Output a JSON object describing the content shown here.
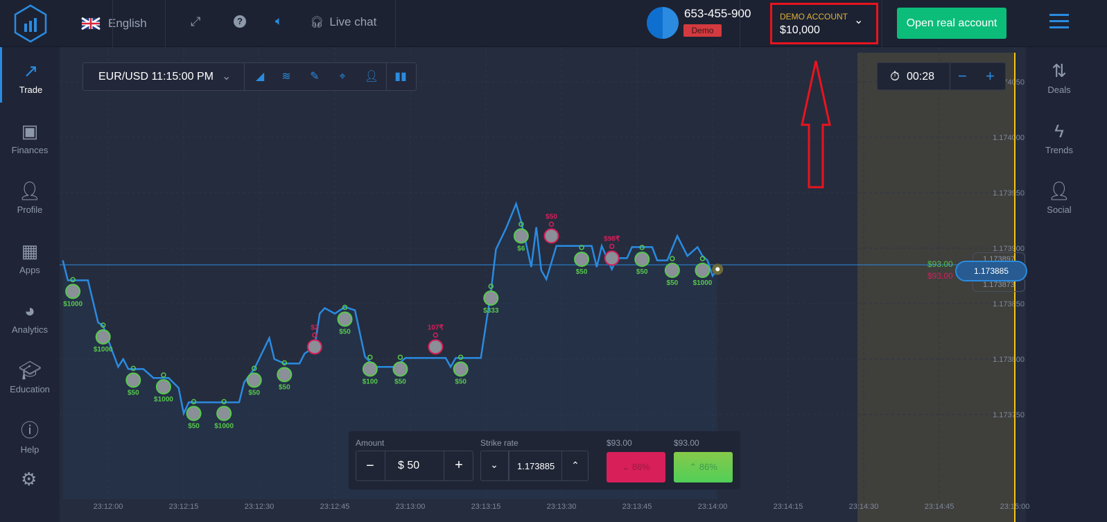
{
  "header": {
    "language": "English",
    "live_chat": "Live chat",
    "account_id": "653-455-900",
    "account_badge": "Demo",
    "account_type": "DEMO ACCOUNT",
    "balance": "$10,000",
    "open_real": "Open real account"
  },
  "sidebar": {
    "items": [
      {
        "label": "Trade",
        "icon": "trend-up-icon",
        "active": true
      },
      {
        "label": "Finances",
        "icon": "banknote-icon"
      },
      {
        "label": "Profile",
        "icon": "user-icon"
      },
      {
        "label": "Apps",
        "icon": "grid-icon"
      },
      {
        "label": "Analytics",
        "icon": "pie-chart-icon"
      },
      {
        "label": "Education",
        "icon": "graduation-cap-icon"
      },
      {
        "label": "Help",
        "icon": "info-icon"
      }
    ]
  },
  "right_sidebar": {
    "items": [
      {
        "label": "Deals",
        "icon": "up-down-arrows-icon"
      },
      {
        "label": "Trends",
        "icon": "lightning-icon"
      },
      {
        "label": "Social",
        "icon": "user-plus-icon"
      }
    ]
  },
  "toolbar": {
    "asset": "EUR/USD 11:15:00 PM"
  },
  "timer": {
    "value": "00:28"
  },
  "trade_panel": {
    "amount_label": "Amount",
    "amount": "$ 50",
    "strike_label": "Strike rate",
    "strike": "1.173885",
    "down_payout": "$93.00",
    "up_payout": "$93.00",
    "down_pct": "86%",
    "up_pct": "86%"
  },
  "price_tag": {
    "current": "1.173885",
    "upper": "1.173897",
    "lower": "1.173873",
    "profit_up": "$93.00",
    "profit_down": "$93.00"
  },
  "colors": {
    "accent": "#2a8be0",
    "green": "#58c94d",
    "red": "#d81f5a",
    "open_real": "#0cbd7a",
    "highlight": "#e8141e",
    "expiry": "#f5c518"
  },
  "chart_data": {
    "type": "line",
    "y_ticks": [
      "1.174050",
      "1.174000",
      "1.173950",
      "1.173900",
      "1.173850",
      "1.173800",
      "1.173750"
    ],
    "x_ticks": [
      "23:12:00",
      "23:12:15",
      "23:12:30",
      "23:12:45",
      "23:13:00",
      "23:13:15",
      "23:13:30",
      "23:13:45",
      "23:14:00",
      "23:14:15",
      "23:14:30",
      "23:14:45",
      "23:15:00"
    ],
    "expiry": "23:15:00",
    "current_price": 1.173885,
    "points": [
      [
        "23:11:51",
        1.173889
      ],
      [
        "23:11:52",
        1.173871
      ],
      [
        "23:11:56",
        1.173871
      ],
      [
        "23:11:58",
        1.173833
      ],
      [
        "23:11:59",
        1.17383
      ],
      [
        "23:12:01",
        1.173805
      ],
      [
        "23:12:02",
        1.173793
      ],
      [
        "23:12:03",
        1.1738
      ],
      [
        "23:12:04",
        1.173791
      ],
      [
        "23:12:07",
        1.173791
      ],
      [
        "23:12:09",
        1.173783
      ],
      [
        "23:12:12",
        1.173783
      ],
      [
        "23:12:14",
        1.173774
      ],
      [
        "23:12:15",
        1.173751
      ],
      [
        "23:12:16",
        1.173761
      ],
      [
        "23:12:26",
        1.173761
      ],
      [
        "23:12:27",
        1.173779
      ],
      [
        "23:12:29",
        1.173791
      ],
      [
        "23:12:32",
        1.173819
      ],
      [
        "23:12:33",
        1.1738
      ],
      [
        "23:12:35",
        1.173796
      ],
      [
        "23:12:38",
        1.173796
      ],
      [
        "23:12:39",
        1.173805
      ],
      [
        "23:12:41",
        1.173811
      ],
      [
        "23:12:42",
        1.173841
      ],
      [
        "23:12:43",
        1.173846
      ],
      [
        "23:12:45",
        1.173841
      ],
      [
        "23:12:47",
        1.173847
      ],
      [
        "23:12:49",
        1.173844
      ],
      [
        "23:12:51",
        1.173802
      ],
      [
        "23:12:53",
        1.173793
      ],
      [
        "23:12:57",
        1.173793
      ],
      [
        "23:12:59",
        1.173801
      ],
      [
        "23:13:07",
        1.173801
      ],
      [
        "23:13:08",
        1.173793
      ],
      [
        "23:13:09",
        1.173801
      ],
      [
        "23:13:14",
        1.173801
      ],
      [
        "23:13:15",
        1.173831
      ],
      [
        "23:13:16",
        1.173861
      ],
      [
        "23:13:17",
        1.173899
      ],
      [
        "23:13:19",
        1.173918
      ],
      [
        "23:13:21",
        1.17394
      ],
      [
        "23:13:22",
        1.173924
      ],
      [
        "23:13:24",
        1.173883
      ],
      [
        "23:13:25",
        1.173919
      ],
      [
        "23:13:26",
        1.17388
      ],
      [
        "23:13:27",
        1.173872
      ],
      [
        "23:13:29",
        1.173902
      ],
      [
        "23:13:36",
        1.173902
      ],
      [
        "23:13:37",
        1.173883
      ],
      [
        "23:13:38",
        1.173902
      ],
      [
        "23:13:40",
        1.173881
      ],
      [
        "23:13:41",
        1.173891
      ],
      [
        "23:13:43",
        1.173891
      ],
      [
        "23:13:44",
        1.173901
      ],
      [
        "23:13:48",
        1.173901
      ],
      [
        "23:13:49",
        1.173889
      ],
      [
        "23:13:51",
        1.173889
      ],
      [
        "23:13:53",
        1.173911
      ],
      [
        "23:13:55",
        1.173893
      ],
      [
        "23:13:57",
        1.173901
      ],
      [
        "23:13:58",
        1.173893
      ],
      [
        "23:13:59",
        1.173889
      ],
      [
        "23:14:00",
        1.173875
      ],
      [
        "23:14:01",
        1.173881
      ]
    ],
    "trades": [
      [
        "23:11:53",
        1.173861,
        "$1000",
        "up"
      ],
      [
        "23:11:59",
        1.17382,
        "$1000",
        "up"
      ],
      [
        "23:12:05",
        1.173781,
        "$50",
        "up"
      ],
      [
        "23:12:11",
        1.173775,
        "$1000",
        "up"
      ],
      [
        "23:12:17",
        1.173751,
        "$50",
        "up"
      ],
      [
        "23:12:23",
        1.173751,
        "$1000",
        "up"
      ],
      [
        "23:12:29",
        1.173781,
        "$50",
        "up"
      ],
      [
        "23:12:35",
        1.173786,
        "$50",
        "up"
      ],
      [
        "23:12:41",
        1.173811,
        "$2",
        "down"
      ],
      [
        "23:12:47",
        1.173836,
        "$50",
        "up"
      ],
      [
        "23:12:52",
        1.173791,
        "$100",
        "up"
      ],
      [
        "23:12:58",
        1.173791,
        "$50",
        "up"
      ],
      [
        "23:13:05",
        1.173811,
        "107₹",
        "down"
      ],
      [
        "23:13:10",
        1.173791,
        "$50",
        "up"
      ],
      [
        "23:13:16",
        1.173855,
        "$333",
        "up"
      ],
      [
        "23:13:22",
        1.173911,
        "$6",
        "up"
      ],
      [
        "23:13:28",
        1.173911,
        "$50",
        "down"
      ],
      [
        "23:13:34",
        1.17389,
        "$50",
        "up"
      ],
      [
        "23:13:40",
        1.173891,
        "$98₹",
        "down"
      ],
      [
        "23:13:46",
        1.17389,
        "$50",
        "up"
      ],
      [
        "23:13:52",
        1.17388,
        "$50",
        "up"
      ],
      [
        "23:13:58",
        1.17388,
        "$1000",
        "up"
      ]
    ]
  }
}
